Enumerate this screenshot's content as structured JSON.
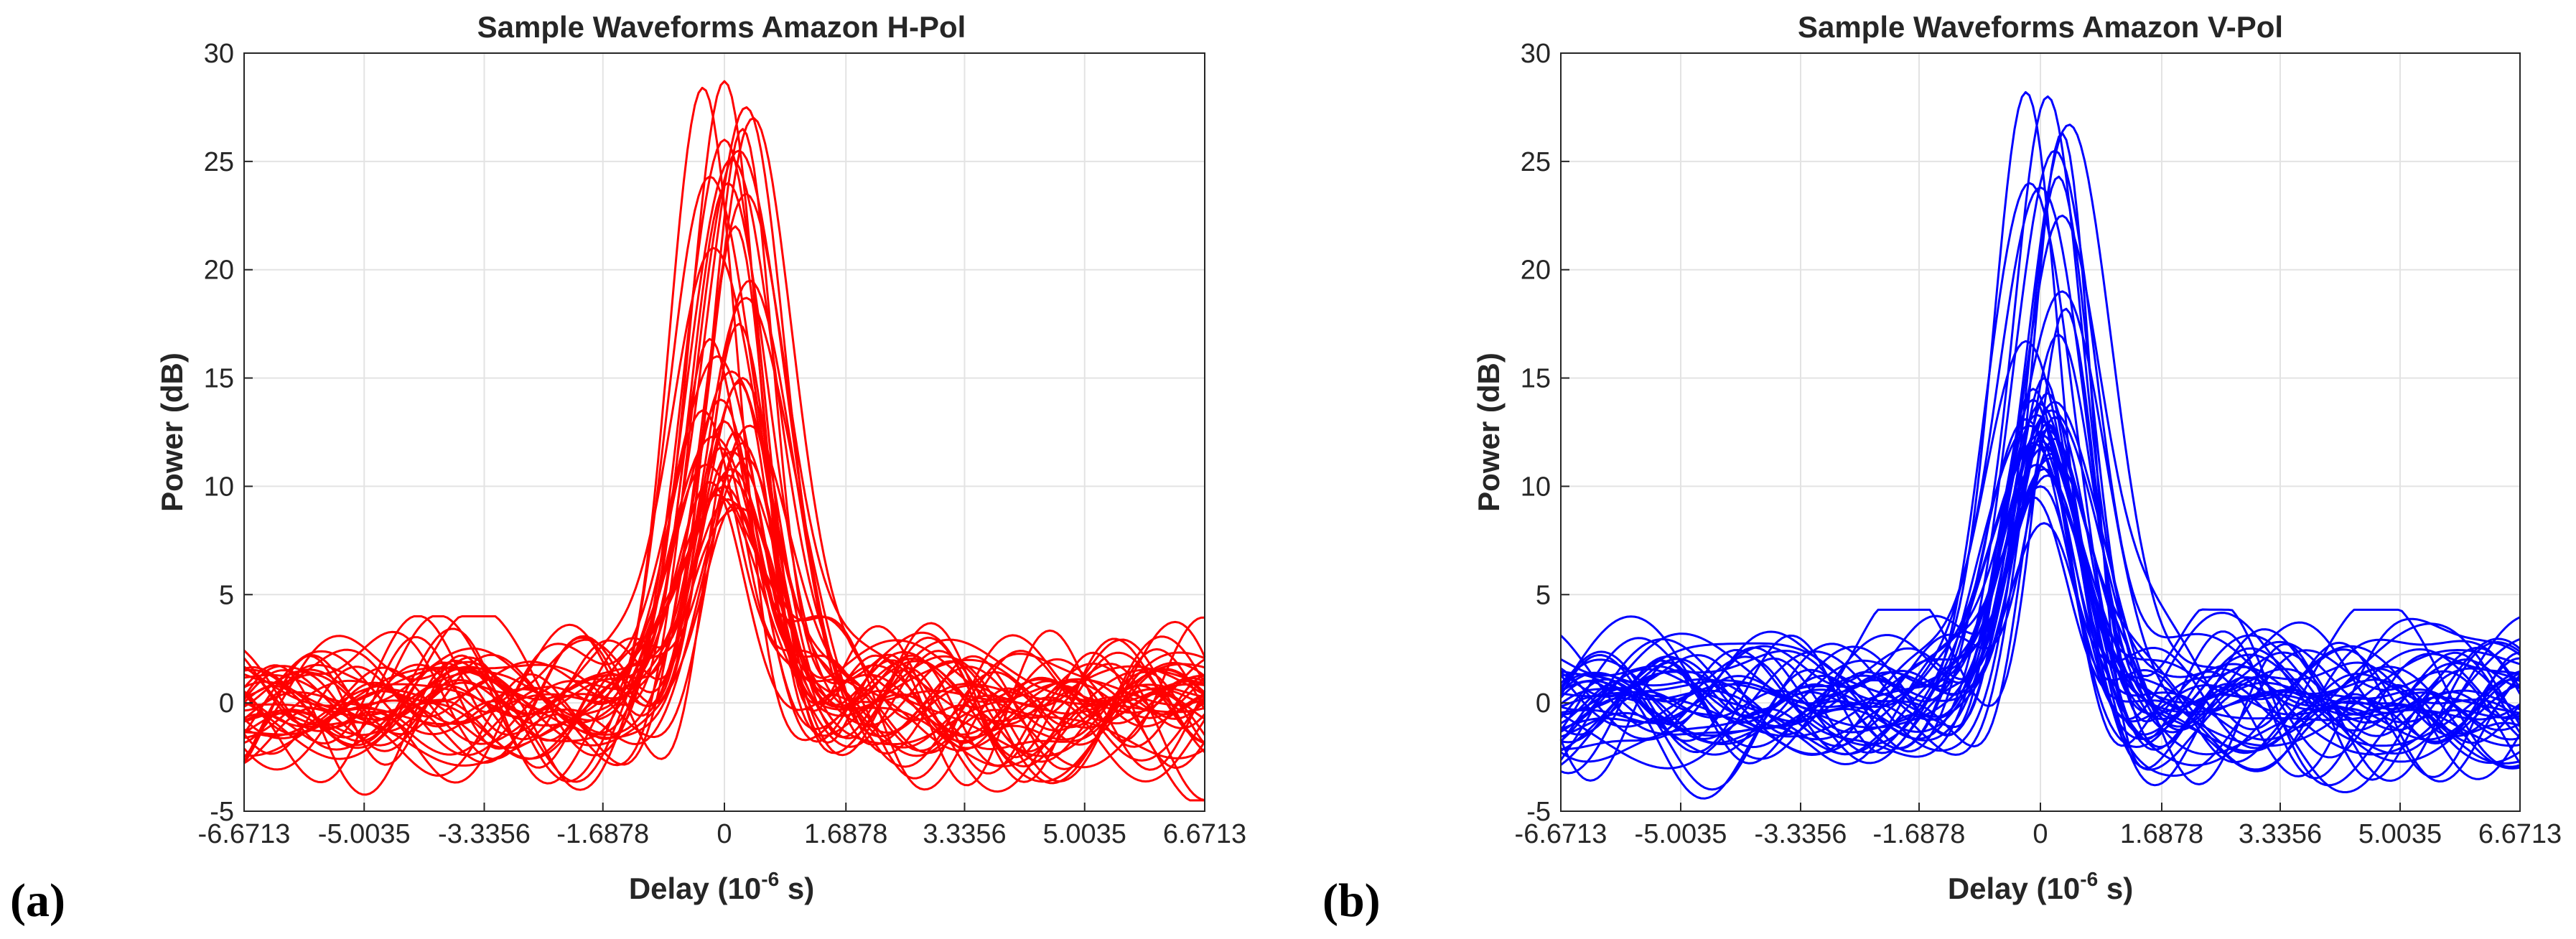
{
  "chart_data": [
    {
      "type": "line",
      "panel_label": "(a)",
      "title": "Sample Waveforms Amazon H-Pol",
      "xlabel": "Delay (10",
      "xlabel_exp": "-6",
      "xlabel_unit": " s)",
      "ylabel": "Power (dB)",
      "xlim": [
        -6.6713,
        6.6713
      ],
      "ylim": [
        -5,
        30
      ],
      "xticks": [
        -6.6713,
        -5.0035,
        -3.3356,
        -1.6878,
        0,
        1.6878,
        3.3356,
        5.0035,
        6.6713
      ],
      "xtick_labels": [
        "-6.6713",
        "-5.0035",
        "-3.3356",
        "-1.6878",
        "0",
        "1.6878",
        "3.3356",
        "5.0035",
        "6.6713"
      ],
      "yticks": [
        -5,
        0,
        5,
        10,
        15,
        20,
        25,
        30
      ],
      "ytick_labels": [
        "-5",
        "0",
        "5",
        "10",
        "15",
        "20",
        "25",
        "30"
      ],
      "grid": true,
      "color": "#ff0000",
      "series_count": 40,
      "peak_values_db": [
        28.7,
        28.4,
        27.0,
        26.5,
        25.5,
        25.1,
        24.3,
        24.0,
        23.5,
        22.0,
        19.5,
        18.7,
        16.8,
        16.0,
        15.3,
        14.8,
        14.0,
        13.0,
        12.3,
        12.0,
        11.6,
        11.3,
        11.0,
        10.5,
        10.0,
        9.6,
        9.2,
        9.0,
        13.5,
        12.8,
        11.8,
        10.8,
        15.0,
        17.5,
        21.0,
        26.0,
        27.5,
        10.2,
        9.4,
        12.5
      ],
      "peak_delays": [
        0.0,
        -0.3,
        0.4,
        0.25,
        0.2,
        0.1,
        -0.2,
        0.05,
        0.3,
        0.15,
        0.35,
        0.3,
        -0.2,
        -0.1,
        0.1,
        0.2,
        -0.05,
        0.0,
        -0.15,
        0.25,
        0.1,
        0.3,
        -0.25,
        0.05,
        0.0,
        -0.1,
        0.15,
        0.2,
        -0.3,
        0.35,
        -0.05,
        0.1,
        0.25,
        0.2,
        -0.15,
        0.0,
        0.3,
        -0.2,
        0.05,
        0.15
      ],
      "noise_range_db": [
        -4.5,
        4.0
      ]
    },
    {
      "type": "line",
      "panel_label": "(b)",
      "title": "Sample Waveforms Amazon V-Pol",
      "xlabel": "Delay (10",
      "xlabel_exp": "-6",
      "xlabel_unit": " s)",
      "ylabel": "Power (dB)",
      "xlim": [
        -6.6713,
        6.6713
      ],
      "ylim": [
        -5,
        30
      ],
      "xticks": [
        -6.6713,
        -5.0035,
        -3.3356,
        -1.6878,
        0,
        1.6878,
        3.3356,
        5.0035,
        6.6713
      ],
      "xtick_labels": [
        "-6.6713",
        "-5.0035",
        "-3.3356",
        "-1.6878",
        "0",
        "1.6878",
        "3.3356",
        "5.0035",
        "6.6713"
      ],
      "yticks": [
        -5,
        0,
        5,
        10,
        15,
        20,
        25,
        30
      ],
      "ytick_labels": [
        "-5",
        "0",
        "5",
        "10",
        "15",
        "20",
        "25",
        "30"
      ],
      "grid": true,
      "color": "#0000ff",
      "series_count": 40,
      "peak_values_db": [
        28.2,
        28.0,
        26.7,
        26.3,
        24.3,
        24.0,
        23.8,
        19.0,
        18.2,
        16.7,
        15.0,
        14.3,
        14.0,
        13.8,
        13.5,
        13.3,
        13.2,
        13.0,
        12.8,
        12.6,
        12.4,
        12.2,
        12.0,
        11.8,
        11.5,
        11.0,
        10.5,
        10.0,
        9.5,
        8.3,
        13.9,
        13.1,
        12.9,
        12.1,
        11.3,
        14.5,
        22.5,
        25.5,
        17.0,
        10.8
      ],
      "peak_delays": [
        -0.2,
        0.1,
        0.4,
        0.3,
        0.25,
        -0.15,
        0.0,
        0.3,
        0.35,
        -0.2,
        0.05,
        0.1,
        -0.1,
        0.0,
        0.15,
        -0.05,
        0.2,
        0.05,
        -0.15,
        0.1,
        0.0,
        0.2,
        -0.1,
        0.05,
        0.15,
        -0.05,
        0.1,
        0.0,
        -0.1,
        0.05,
        0.2,
        -0.2,
        0.1,
        0.0,
        0.15,
        -0.1,
        0.3,
        0.2,
        0.25,
        0.05
      ],
      "noise_range_db": [
        -4.8,
        4.3
      ]
    }
  ]
}
